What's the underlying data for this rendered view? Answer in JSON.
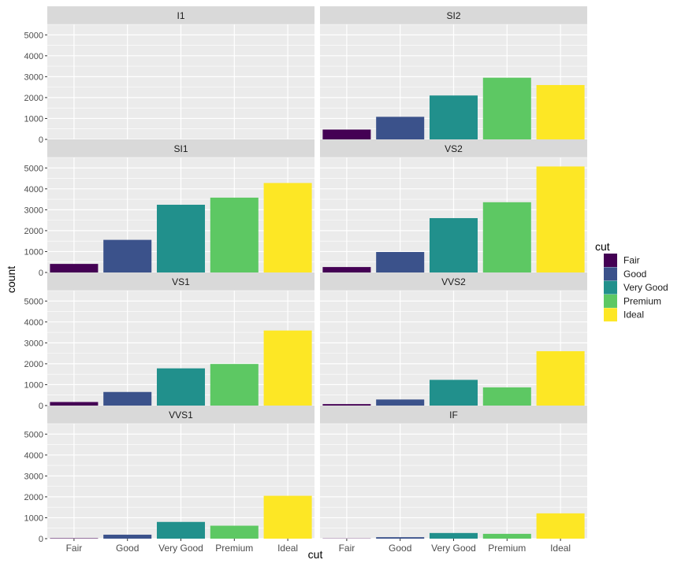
{
  "chart_data": {
    "type": "bar",
    "categories": [
      "Fair",
      "Good",
      "Very Good",
      "Premium",
      "Ideal"
    ],
    "xlabel": "cut",
    "ylabel": "count",
    "ylim": [
      0,
      5500
    ],
    "yticks": [
      0,
      1000,
      2000,
      3000,
      4000,
      5000
    ],
    "grid": true,
    "facet_layout": "4 rows x 2 columns",
    "legend": {
      "title": "cut",
      "placement": "right",
      "entries": [
        "Fair",
        "Good",
        "Very Good",
        "Premium",
        "Ideal"
      ]
    },
    "colors": {
      "Fair": "#440154",
      "Good": "#3b528b",
      "Very Good": "#21908c",
      "Premium": "#5dc863",
      "Ideal": "#fde725",
      "panel_background": "#ebebeb",
      "strip_background": "#d9d9d9",
      "grid_line": "#ffffff"
    },
    "facets": [
      {
        "name": "I1",
        "values": [
          0,
          0,
          0,
          0,
          0
        ]
      },
      {
        "name": "SI2",
        "values": [
          470,
          1080,
          2100,
          2950,
          2600
        ]
      },
      {
        "name": "SI1",
        "values": [
          410,
          1560,
          3240,
          3580,
          4280
        ]
      },
      {
        "name": "VS2",
        "values": [
          260,
          980,
          2600,
          3360,
          5070
        ]
      },
      {
        "name": "VS1",
        "values": [
          170,
          650,
          1780,
          1990,
          3590
        ]
      },
      {
        "name": "VVS2",
        "values": [
          70,
          290,
          1230,
          870,
          2600
        ]
      },
      {
        "name": "VVS1",
        "values": [
          20,
          190,
          800,
          620,
          2050
        ]
      },
      {
        "name": "IF",
        "values": [
          10,
          70,
          270,
          230,
          1210
        ]
      }
    ]
  }
}
